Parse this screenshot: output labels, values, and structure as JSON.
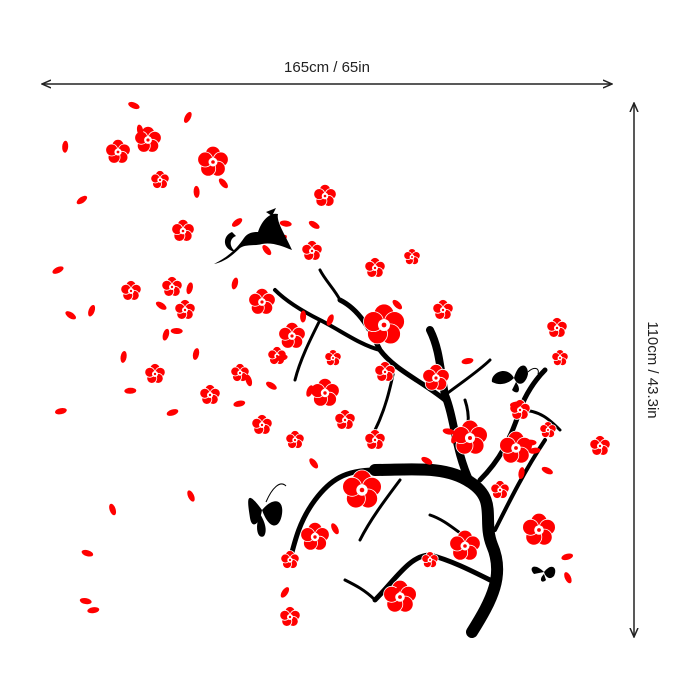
{
  "dimensions": {
    "width_label": "165cm / 65in",
    "height_label": "110cm / 43.3in"
  }
}
